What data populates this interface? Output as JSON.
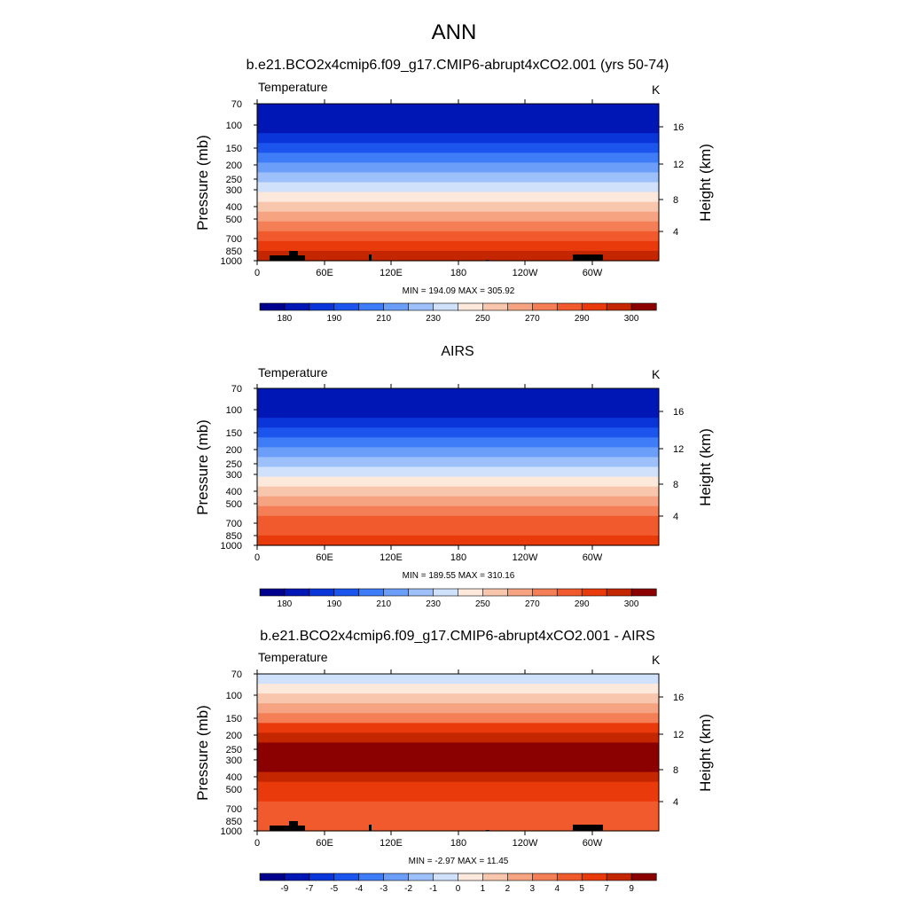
{
  "figure": {
    "title": "ANN"
  },
  "chart_data": [
    {
      "type": "heatmap",
      "title": "b.e21.BCO2x4cmip6.f09_g17.CMIP6-abrupt4xCO2.001 (yrs 50-74)",
      "left_label": "Temperature",
      "units": "K",
      "ylabel": "Pressure (mb)",
      "y2label": "Height (km)",
      "stats": "MIN = 194.09  MAX = 305.92",
      "min": 194.09,
      "max": 305.92,
      "x_ticks": [
        "0",
        "60E",
        "120E",
        "180",
        "120W",
        "60W"
      ],
      "y_ticks": [
        "70",
        "100",
        "150",
        "200",
        "250",
        "300",
        "400",
        "500",
        "700",
        "850",
        "1000"
      ],
      "y2_ticks": [
        "16",
        "12",
        "8",
        "4"
      ],
      "colorbar_labels": [
        "180",
        "190",
        "210",
        "230",
        "250",
        "270",
        "290",
        "300"
      ],
      "levels_top_to_bottom": [
        1,
        1,
        1,
        2,
        3,
        4,
        5,
        6,
        7,
        8,
        9,
        10,
        11,
        12,
        13,
        14
      ],
      "terrain": true
    },
    {
      "type": "heatmap",
      "title": "AIRS",
      "left_label": "Temperature",
      "units": "K",
      "ylabel": "Pressure (mb)",
      "y2label": "Height (km)",
      "stats": "MIN = 189.55  MAX = 310.16",
      "min": 189.55,
      "max": 310.16,
      "x_ticks": [
        "0",
        "60E",
        "120E",
        "180",
        "120W",
        "60W"
      ],
      "y_ticks": [
        "70",
        "100",
        "150",
        "200",
        "250",
        "300",
        "400",
        "500",
        "700",
        "850",
        "1000"
      ],
      "y2_ticks": [
        "16",
        "12",
        "8",
        "4"
      ],
      "colorbar_labels": [
        "180",
        "190",
        "210",
        "230",
        "250",
        "270",
        "290",
        "300"
      ],
      "levels_top_to_bottom": [
        1,
        1,
        1,
        2,
        3,
        4,
        5,
        6,
        7,
        8,
        9,
        10,
        11,
        12,
        12,
        13
      ],
      "terrain": false
    },
    {
      "type": "heatmap",
      "title": "b.e21.BCO2x4cmip6.f09_g17.CMIP6-abrupt4xCO2.001 - AIRS",
      "left_label": "Temperature",
      "units": "K",
      "ylabel": "Pressure (mb)",
      "y2label": "Height (km)",
      "stats": "MIN = -2.97  MAX =  11.45",
      "min": -2.97,
      "max": 11.45,
      "x_ticks": [
        "0",
        "60E",
        "120E",
        "180",
        "120W",
        "60W"
      ],
      "y_ticks": [
        "70",
        "100",
        "150",
        "200",
        "250",
        "300",
        "400",
        "500",
        "700",
        "850",
        "1000"
      ],
      "y2_ticks": [
        "16",
        "12",
        "8",
        "4"
      ],
      "colorbar_labels": [
        "-9",
        "-7",
        "-5",
        "-4",
        "-3",
        "-2",
        "-1",
        "0",
        "1",
        "2",
        "3",
        "4",
        "5",
        "7",
        "9"
      ],
      "levels_top_to_bottom": [
        7,
        8,
        9,
        10,
        11,
        13,
        14,
        15,
        15,
        15,
        14,
        13,
        13,
        12,
        12,
        12
      ],
      "terrain": true
    }
  ],
  "colors": {
    "palette": [
      "#00008f",
      "#0016b5",
      "#0a35d8",
      "#1c55ee",
      "#3f7cf7",
      "#6b9ef9",
      "#9ec0fa",
      "#cfe1fb",
      "#fde9dc",
      "#f8c6ad",
      "#f6a381",
      "#f47f57",
      "#f15a2d",
      "#e93a0c",
      "#c42600",
      "#8b0000"
    ],
    "terrain": "#000000"
  }
}
